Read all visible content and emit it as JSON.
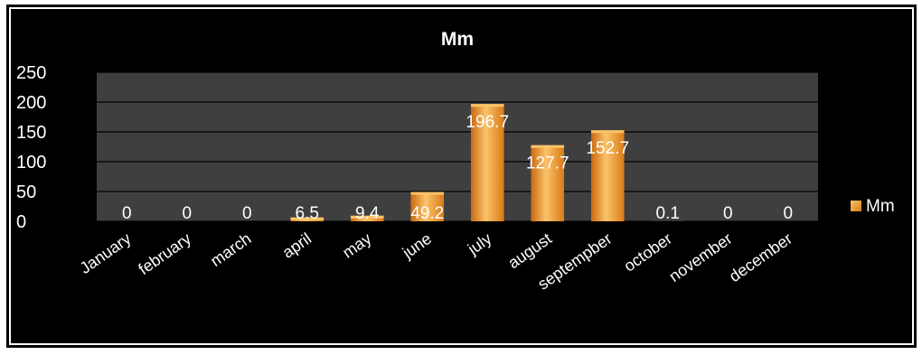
{
  "chart_data": {
    "type": "bar",
    "title": "Mm",
    "categories": [
      "January",
      "february",
      "march",
      "april",
      "may",
      "june",
      "july",
      "august",
      "septempber",
      "october",
      "november",
      "december"
    ],
    "series": [
      {
        "name": "Mm",
        "values": [
          0,
          0,
          0,
          6.5,
          9.4,
          49.2,
          196.7,
          127.7,
          152.7,
          0.1,
          0,
          0
        ]
      }
    ],
    "data_labels": [
      "0",
      "0",
      "0",
      "6.5",
      "9.4",
      "49.2",
      "196.7",
      "127.7",
      "152.7",
      "0.1",
      "0",
      "0"
    ],
    "yticks": [
      "0",
      "50",
      "100",
      "150",
      "200",
      "250"
    ],
    "ylim": [
      0,
      250
    ],
    "grid": true,
    "legend_position": "right",
    "colors": {
      "bar": "#f39a2c",
      "bar_light": "#fbc36a",
      "bar_dark": "#c96a10",
      "plot_bg": "#3f3f3f",
      "gridline": "#000000",
      "text": "#ffffff"
    }
  }
}
